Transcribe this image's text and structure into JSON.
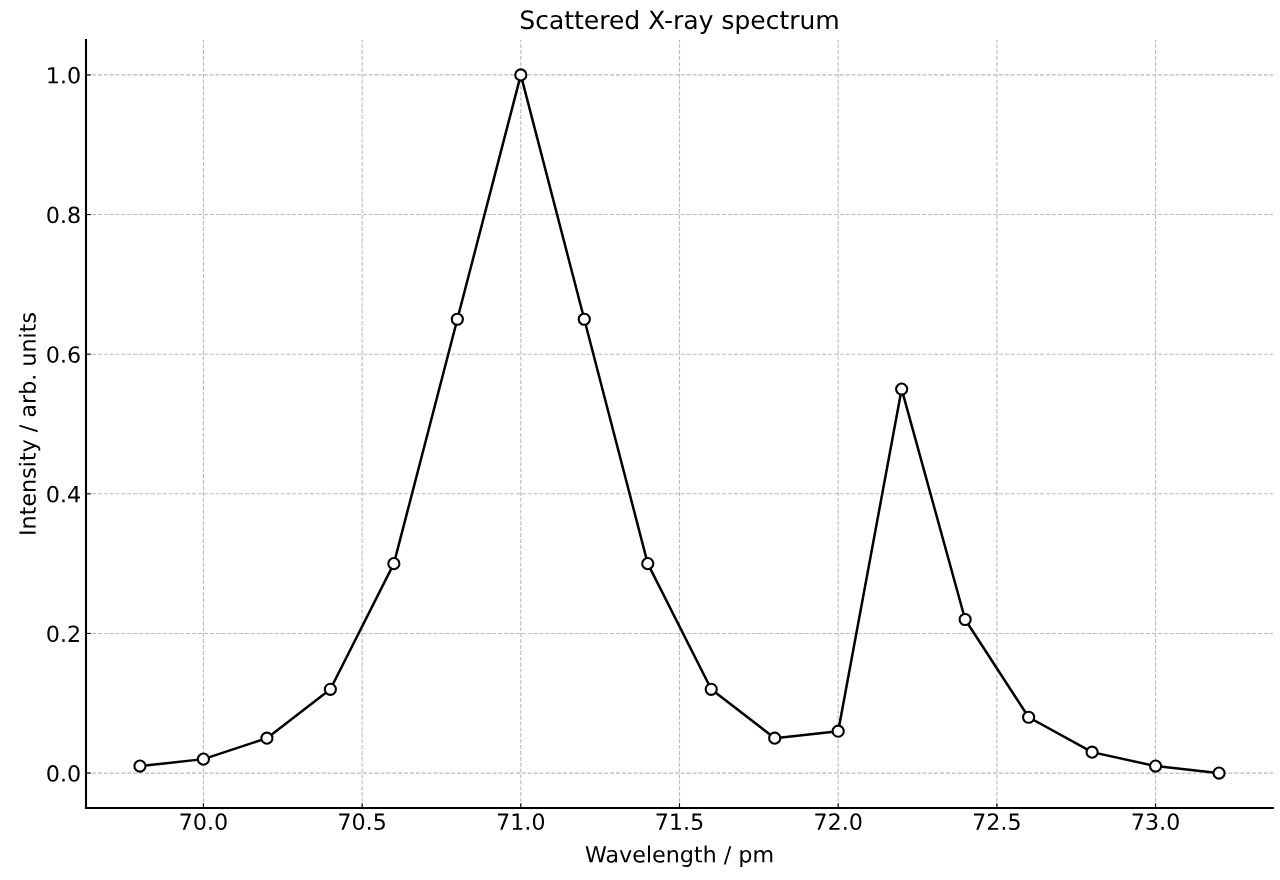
{
  "chart_data": {
    "type": "line",
    "title": "Scattered X-ray spectrum",
    "xlabel": "Wavelength / pm",
    "ylabel": "Intensity / arb. units",
    "x": [
      69.8,
      70.0,
      70.2,
      70.4,
      70.6,
      70.8,
      71.0,
      71.2,
      71.4,
      71.6,
      71.8,
      72.0,
      72.2,
      72.4,
      72.6,
      72.8,
      73.0,
      73.2
    ],
    "series": [
      {
        "color": "#000000",
        "values": [
          0.01,
          0.02,
          0.05,
          0.12,
          0.3,
          0.65,
          1.0,
          0.65,
          0.3,
          0.12,
          0.05,
          0.06,
          0.55,
          0.22,
          0.08,
          0.03,
          0.01,
          0.0
        ]
      }
    ],
    "xlim": [
      69.63,
      73.37
    ],
    "ylim": [
      -0.05,
      1.05
    ],
    "xticks": [
      {
        "value": 70,
        "label": "70.0"
      },
      {
        "value": 70.5,
        "label": "70.5"
      },
      {
        "value": 71,
        "label": "71.0"
      },
      {
        "value": 71.5,
        "label": "71.5"
      },
      {
        "value": 72,
        "label": "72.0"
      },
      {
        "value": 72.5,
        "label": "72.5"
      },
      {
        "value": 73,
        "label": "73.0"
      }
    ],
    "yticks": [
      {
        "value": 0,
        "label": "0.0"
      },
      {
        "value": 0.2,
        "label": "0.2"
      },
      {
        "value": 0.4,
        "label": "0.4"
      },
      {
        "value": 0.6,
        "label": "0.6"
      },
      {
        "value": 0.8,
        "label": "0.8"
      },
      {
        "value": 1.0,
        "label": "1.0"
      }
    ],
    "grid": true,
    "marker": "circle",
    "line_style": "solid"
  }
}
